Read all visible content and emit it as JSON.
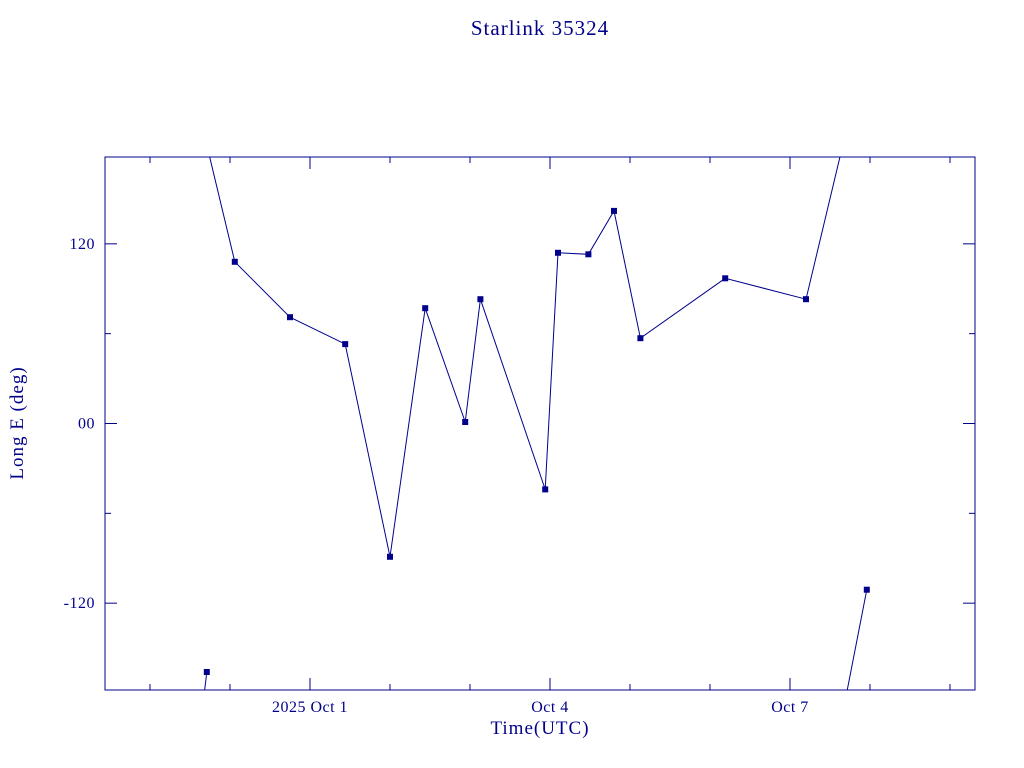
{
  "page": {
    "background": "#ffffff"
  },
  "chart_data": {
    "type": "line",
    "title": "Starlink 35324",
    "xlabel": "Time(UTC)",
    "ylabel": "Long E (deg)",
    "color": "#00008B",
    "background": "#ffffff",
    "grid": false,
    "legend": false,
    "x_unit": "days relative to 2025 Oct 1 00:00 UTC",
    "y_unit": "deg",
    "x_range": [
      -2.5625,
      8.3125
    ],
    "y_range": [
      -178,
      178
    ],
    "x_major_ticks": [
      {
        "x": 0,
        "label": "2025 Oct 1"
      },
      {
        "x": 3,
        "label": "Oct 4"
      },
      {
        "x": 6,
        "label": "Oct 7"
      }
    ],
    "x_minor_ticks": [
      -2,
      -1,
      1,
      2,
      4,
      5,
      7,
      8
    ],
    "y_major_ticks": [
      {
        "y": 120,
        "label": "120"
      },
      {
        "y": 0,
        "label": "00"
      },
      {
        "y": -120,
        "label": "-120"
      }
    ],
    "y_minor_ticks": [
      -60,
      60
    ],
    "series": [
      {
        "name": "longitude-track",
        "marker": "square",
        "marker_size": 5,
        "segments": [
          {
            "comment_role": "wrap-around tail, bottom left",
            "points": [
              [
                -1.33,
                -184,
                0
              ],
              [
                -1.29,
                -166,
                1
              ]
            ]
          },
          {
            "comment_role": "main track",
            "points": [
              [
                -1.29,
                186,
                0
              ],
              [
                -0.94,
                108,
                1
              ],
              [
                -0.25,
                71,
                1
              ],
              [
                0.44,
                53,
                1
              ],
              [
                1.0,
                -89,
                1
              ],
              [
                1.44,
                77,
                1
              ],
              [
                1.94,
                1,
                1
              ],
              [
                2.13,
                83,
                1
              ],
              [
                2.94,
                -44,
                1
              ],
              [
                3.1,
                114,
                1
              ],
              [
                3.48,
                113,
                1
              ],
              [
                3.8,
                142,
                1
              ],
              [
                4.13,
                57,
                1
              ],
              [
                5.19,
                97,
                1
              ],
              [
                6.2,
                83,
                1
              ],
              [
                6.66,
                186,
                0
              ]
            ]
          },
          {
            "comment_role": "wrap-around tail, bottom right",
            "points": [
              [
                6.69,
                -185,
                0
              ],
              [
                6.96,
                -111,
                1
              ]
            ]
          }
        ]
      }
    ]
  }
}
